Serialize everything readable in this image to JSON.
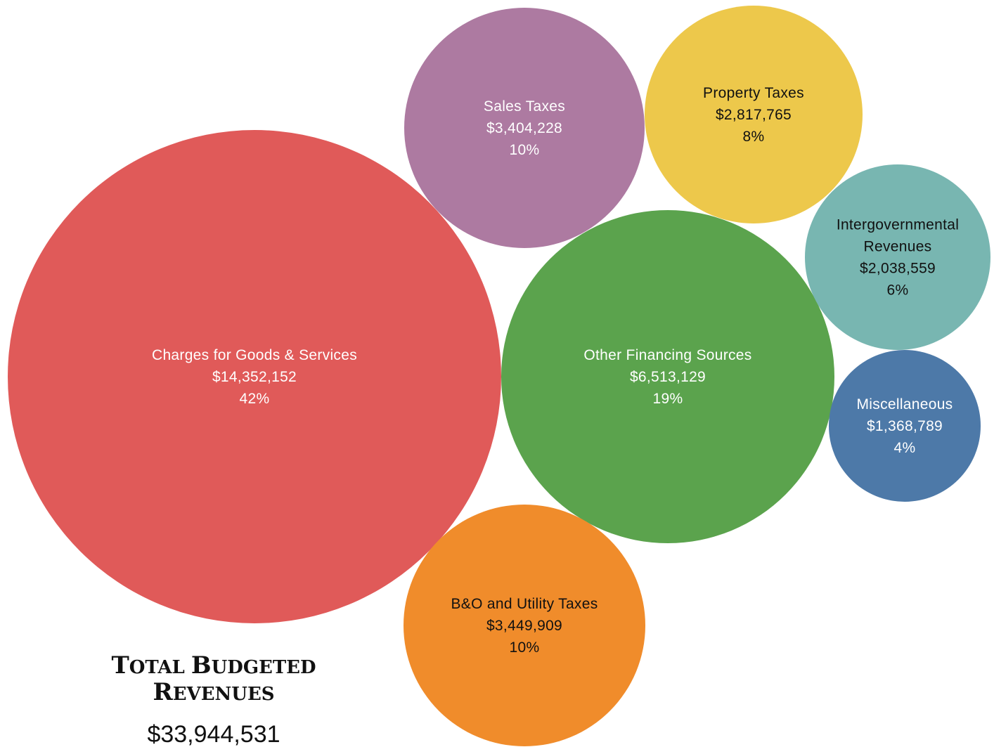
{
  "chart_data": {
    "type": "bubble",
    "title": "",
    "bubbles": [
      {
        "label": "Charges for Goods & Services",
        "amount": "$14,352,152",
        "value": 14352152,
        "percent": "42%",
        "color": "#e05a59",
        "text_color": "#ffffff"
      },
      {
        "label": "Other Financing Sources",
        "amount": "$6,513,129",
        "value": 6513129,
        "percent": "19%",
        "color": "#5ba34d",
        "text_color": "#ffffff"
      },
      {
        "label": "B&O and Utility Taxes",
        "amount": "$3,449,909",
        "value": 3449909,
        "percent": "10%",
        "color": "#f08c2b",
        "text_color": "#111111"
      },
      {
        "label": "Sales Taxes",
        "amount": "$3,404,228",
        "value": 3404228,
        "percent": "10%",
        "color": "#ad7aa1",
        "text_color": "#ffffff"
      },
      {
        "label": "Property Taxes",
        "amount": "$2,817,765",
        "value": 2817765,
        "percent": "8%",
        "color": "#edc84b",
        "text_color": "#111111"
      },
      {
        "label": "Intergovernmental Revenues",
        "amount": "$2,038,559",
        "value": 2038559,
        "percent": "6%",
        "color": "#78b6b1",
        "text_color": "#111111"
      },
      {
        "label": "Miscellaneous",
        "amount": "$1,368,789",
        "value": 1368789,
        "percent": "4%",
        "color": "#4d79a8",
        "text_color": "#ffffff"
      }
    ],
    "total": {
      "title_line1": "Total Budgeted",
      "title_line2": "Revenues",
      "amount": "$33,944,531"
    }
  }
}
